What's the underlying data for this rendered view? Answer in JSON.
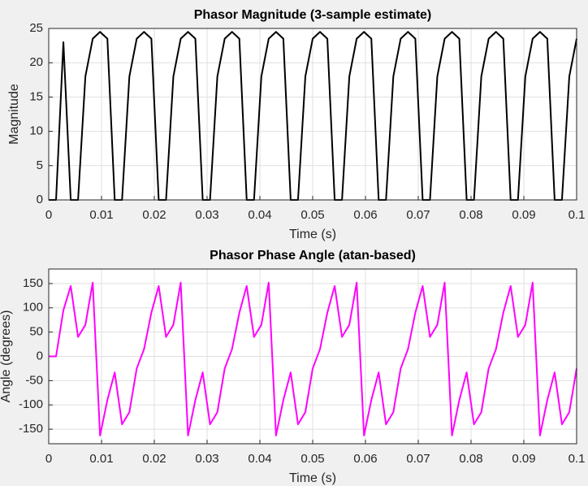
{
  "chart_data": [
    {
      "type": "line",
      "title": "Phasor Magnitude (3-sample estimate)",
      "x_label": "Time (s)",
      "y_label": "Magnitude",
      "x": [
        0,
        0.001389,
        0.002778,
        0.004167,
        0.005556,
        0.006944,
        0.008333,
        0.009722,
        0.011111,
        0.0125,
        0.013889,
        0.015278,
        0.016667,
        0.018056,
        0.019444,
        0.020833,
        0.022222,
        0.023611,
        0.025,
        0.026389,
        0.027778,
        0.029167,
        0.030556,
        0.031944,
        0.033333,
        0.034722,
        0.036111,
        0.0375,
        0.038889,
        0.040278,
        0.041667,
        0.043056,
        0.044444,
        0.045833,
        0.047222,
        0.048611,
        0.05,
        0.051389,
        0.052778,
        0.054167,
        0.055556,
        0.056944,
        0.058333,
        0.059722,
        0.061111,
        0.0625,
        0.063889,
        0.065278,
        0.066667,
        0.068056,
        0.069444,
        0.070833,
        0.072222,
        0.073611,
        0.075,
        0.076389,
        0.077778,
        0.079167,
        0.080556,
        0.081944,
        0.083333,
        0.084722,
        0.086111,
        0.0875,
        0.088889,
        0.090278,
        0.091667,
        0.093056,
        0.094444,
        0.095833,
        0.097222,
        0.098611,
        0.1
      ],
      "series": [
        {
          "color": "#000000",
          "values": [
            0,
            0,
            23,
            0,
            0,
            18,
            23.5,
            24.5,
            23.5,
            0,
            0,
            18,
            23.5,
            24.5,
            23.5,
            0,
            0,
            18,
            23.5,
            24.5,
            23.5,
            0,
            0,
            18,
            23.5,
            24.5,
            23.5,
            0,
            0,
            18,
            23.5,
            24.5,
            23.5,
            0,
            0,
            18,
            23.5,
            24.5,
            23.5,
            0,
            0,
            18,
            23.5,
            24.5,
            23.5,
            0,
            0,
            18,
            23.5,
            24.5,
            23.5,
            0,
            0,
            18,
            23.5,
            24.5,
            23.5,
            0,
            0,
            18,
            23.5,
            24.5,
            23.5,
            0,
            0,
            18,
            23.5,
            24.5,
            23.5,
            0,
            0,
            18,
            23.5
          ]
        }
      ],
      "xlim": [
        0,
        0.1
      ],
      "xticks": [
        0,
        0.01,
        0.02,
        0.03,
        0.04,
        0.05,
        0.06,
        0.07,
        0.08,
        0.09,
        0.1
      ],
      "ylim": [
        0,
        25
      ],
      "yticks": [
        0,
        5,
        10,
        15,
        20,
        25
      ],
      "grid": true
    },
    {
      "type": "line",
      "title": "Phasor Phase Angle (atan-based)",
      "x_label": "Time (s)",
      "y_label": "Angle (degrees)",
      "x": [
        0,
        0.001389,
        0.002778,
        0.004167,
        0.005556,
        0.006944,
        0.008333,
        0.009722,
        0.011111,
        0.0125,
        0.013889,
        0.015278,
        0.016667,
        0.018056,
        0.019444,
        0.020833,
        0.022222,
        0.023611,
        0.025,
        0.026389,
        0.027778,
        0.029167,
        0.030556,
        0.031944,
        0.033333,
        0.034722,
        0.036111,
        0.0375,
        0.038889,
        0.040278,
        0.041667,
        0.043056,
        0.044444,
        0.045833,
        0.047222,
        0.048611,
        0.05,
        0.051389,
        0.052778,
        0.054167,
        0.055556,
        0.056944,
        0.058333,
        0.059722,
        0.061111,
        0.0625,
        0.063889,
        0.065278,
        0.066667,
        0.068056,
        0.069444,
        0.070833,
        0.072222,
        0.073611,
        0.075,
        0.076389,
        0.077778,
        0.079167,
        0.080556,
        0.081944,
        0.083333,
        0.084722,
        0.086111,
        0.0875,
        0.088889,
        0.090278,
        0.091667,
        0.093056,
        0.094444,
        0.095833,
        0.097222,
        0.098611,
        0.1
      ],
      "series": [
        {
          "color": "#ff00ff",
          "values": [
            0,
            0,
            95,
            145,
            40,
            65,
            152,
            -163,
            -90,
            -33,
            -140,
            -115,
            -25,
            15,
            90,
            145,
            40,
            65,
            152,
            -163,
            -90,
            -33,
            -140,
            -115,
            -25,
            15,
            90,
            145,
            40,
            65,
            152,
            -163,
            -90,
            -33,
            -140,
            -115,
            -25,
            15,
            90,
            145,
            40,
            65,
            152,
            -163,
            -90,
            -33,
            -140,
            -115,
            -25,
            15,
            90,
            145,
            40,
            65,
            152,
            -163,
            -90,
            -33,
            -140,
            -115,
            -25,
            15,
            90,
            145,
            40,
            65,
            152,
            -163,
            -90,
            -33,
            -140,
            -115,
            -25
          ]
        }
      ],
      "xlim": [
        0,
        0.1
      ],
      "xticks": [
        0,
        0.01,
        0.02,
        0.03,
        0.04,
        0.05,
        0.06,
        0.07,
        0.08,
        0.09,
        0.1
      ],
      "ylim": [
        -180,
        180
      ],
      "yticks": [
        -150,
        -100,
        -50,
        0,
        50,
        100,
        150
      ],
      "grid": true
    }
  ]
}
